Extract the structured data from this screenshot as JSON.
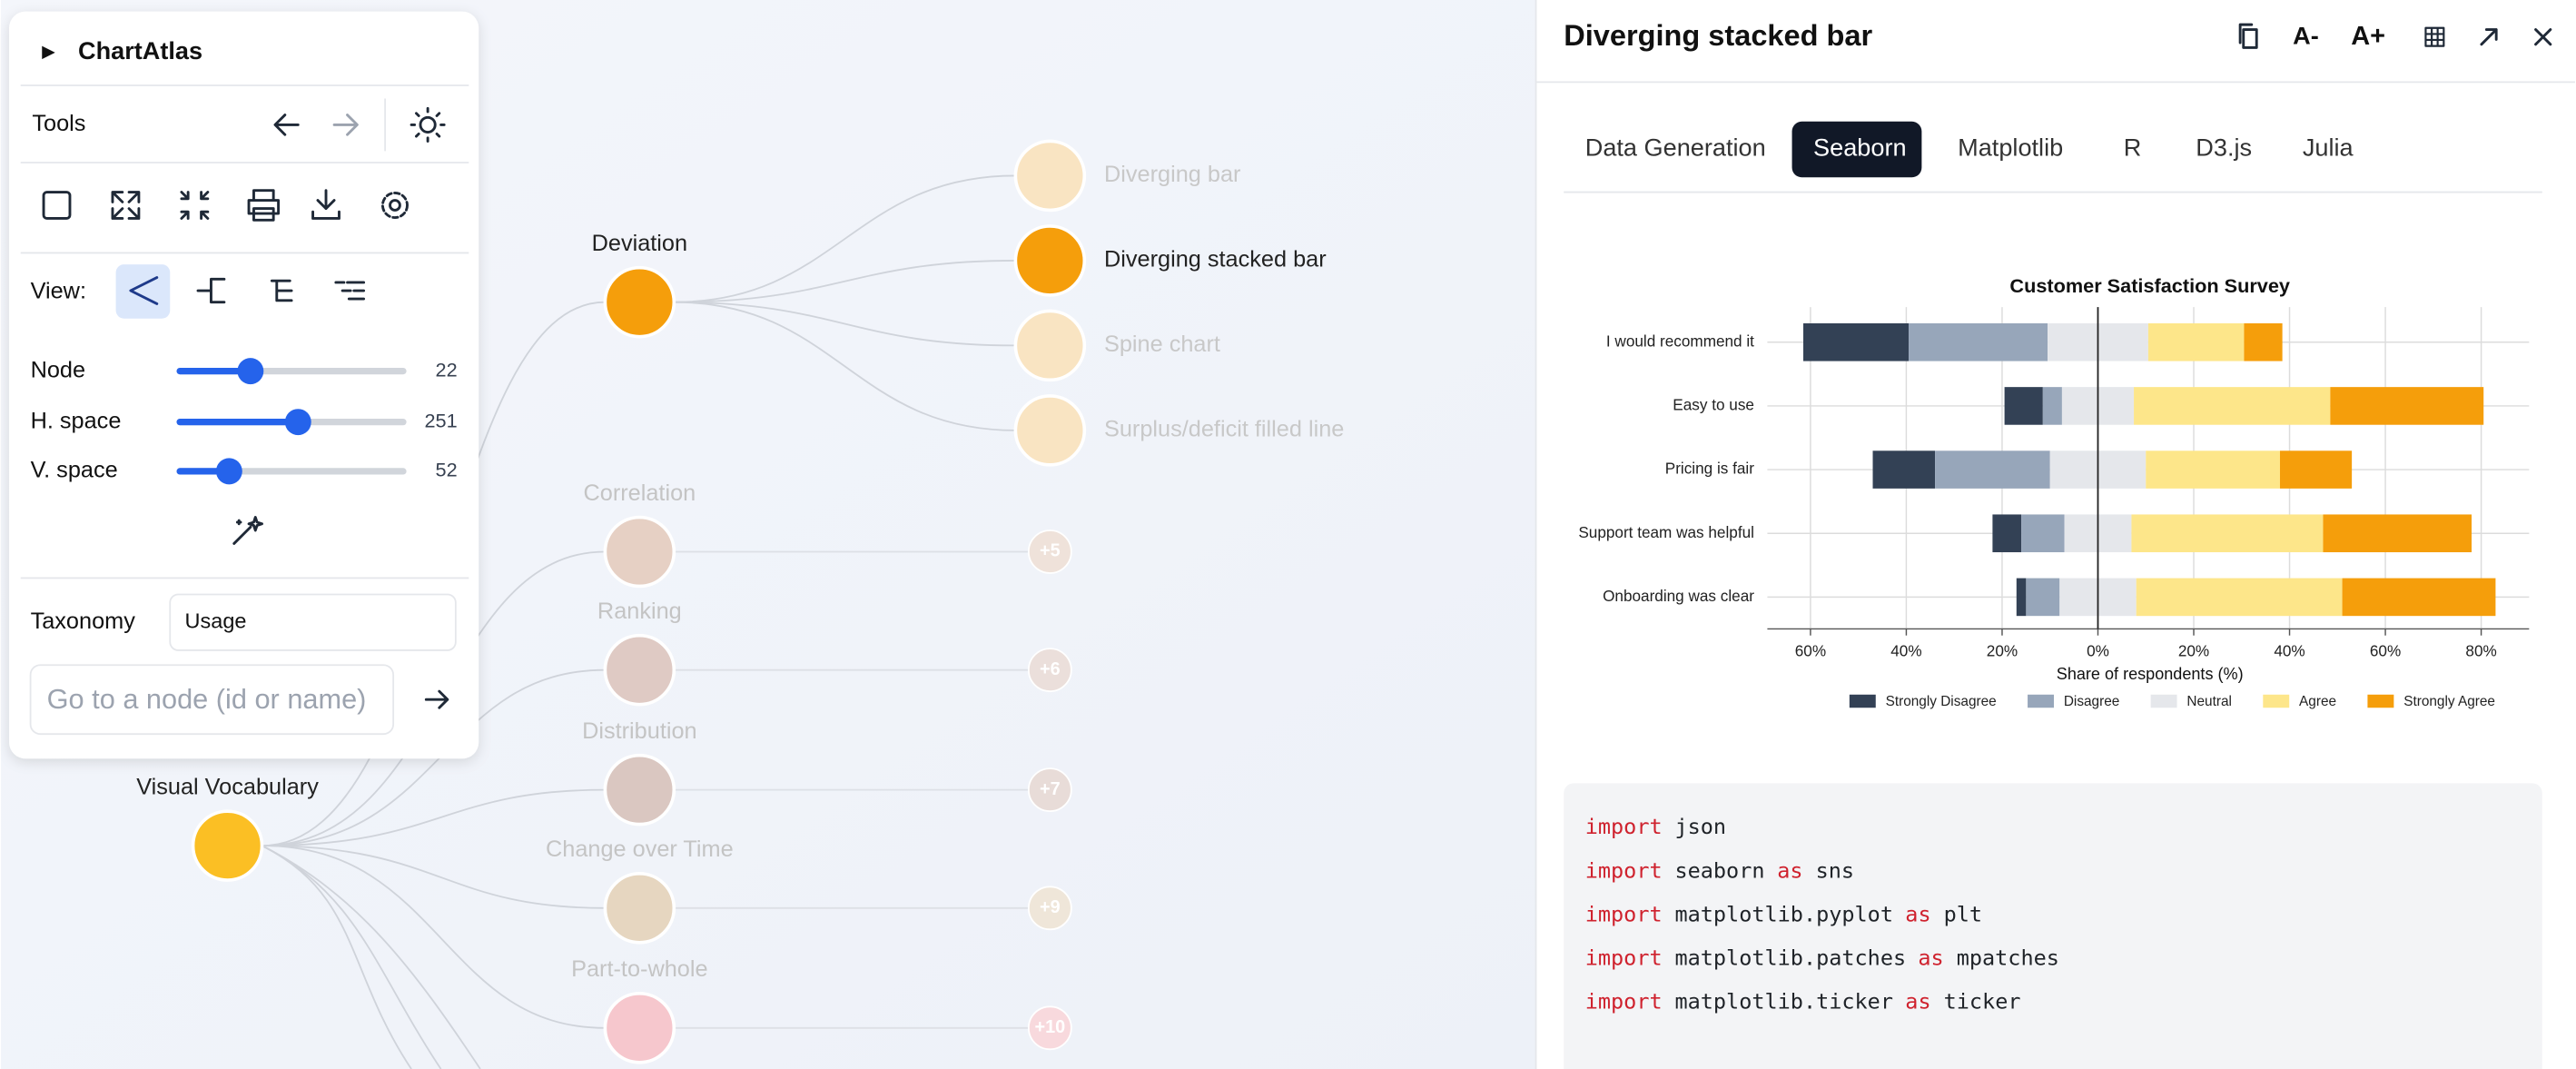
{
  "sidebar": {
    "title": "ChartAtlas",
    "tools_label": "Tools",
    "view_label": "View:",
    "sliders": [
      {
        "label": "Node",
        "value": 22
      },
      {
        "label": "H. space",
        "value": 251
      },
      {
        "label": "V. space",
        "value": 52
      }
    ],
    "taxonomy_label": "Taxonomy",
    "taxonomy_value": "Usage",
    "search_placeholder": "Go to a node (id or name)"
  },
  "tree": {
    "root": "Visual Vocabulary",
    "categories": [
      {
        "name": "Deviation",
        "children": [
          "Diverging bar",
          "Diverging stacked bar",
          "Spine chart",
          "Surplus/deficit filled line"
        ]
      },
      {
        "name": "Correlation",
        "collapsed": "+5"
      },
      {
        "name": "Ranking",
        "collapsed": "+6"
      },
      {
        "name": "Distribution",
        "collapsed": "+7"
      },
      {
        "name": "Change over Time",
        "collapsed": "+9"
      },
      {
        "name": "Part-to-whole",
        "collapsed": "+10"
      }
    ]
  },
  "panel": {
    "title": "Diverging stacked bar",
    "font_buttons": [
      "A-",
      "A+"
    ],
    "tabs": [
      "Data Generation",
      "Seaborn",
      "Matplotlib",
      "R",
      "D3.js",
      "Julia"
    ],
    "active_tab": 1
  },
  "chart_data": {
    "type": "bar",
    "diverging": true,
    "title": "Customer Satisfaction Survey",
    "x_label": "Share of respondents (%)",
    "categories": [
      "I would recommend it",
      "Easy to use",
      "Pricing is fair",
      "Support team was helpful",
      "Onboarding was clear"
    ],
    "series": [
      {
        "name": "Strongly Disagree",
        "color": "#334155",
        "values": [
          22,
          8,
          13,
          6,
          2
        ]
      },
      {
        "name": "Disagree",
        "color": "#97a6ba",
        "values": [
          29,
          4,
          24,
          9,
          7
        ]
      },
      {
        "name": "Neutral",
        "color": "#e5e7eb",
        "values": [
          21,
          15,
          20,
          14,
          16
        ]
      },
      {
        "name": "Agree",
        "color": "#fde68a",
        "values": [
          20,
          41,
          28,
          40,
          43
        ]
      },
      {
        "name": "Strongly Agree",
        "color": "#f59e0b",
        "values": [
          8,
          32,
          15,
          31,
          32
        ]
      }
    ],
    "xlim": [
      -69,
      90
    ],
    "xticks": [
      {
        "value": -60,
        "label": "60%"
      },
      {
        "value": -40,
        "label": "40%"
      },
      {
        "value": -20,
        "label": "20%"
      },
      {
        "value": 0,
        "label": "0%"
      },
      {
        "value": 20,
        "label": "20%"
      },
      {
        "value": 40,
        "label": "40%"
      },
      {
        "value": 60,
        "label": "60%"
      },
      {
        "value": 80,
        "label": "80%"
      }
    ],
    "grid": true
  },
  "code": {
    "lines": [
      [
        "import",
        "json"
      ],
      [
        "import",
        "seaborn",
        "as",
        "sns"
      ],
      [
        "import",
        "matplotlib.pyplot",
        "as",
        "plt"
      ],
      [
        "import",
        "matplotlib.patches",
        "as",
        "mpatches"
      ],
      [
        "import",
        "matplotlib.ticker",
        "as",
        "ticker"
      ]
    ]
  }
}
